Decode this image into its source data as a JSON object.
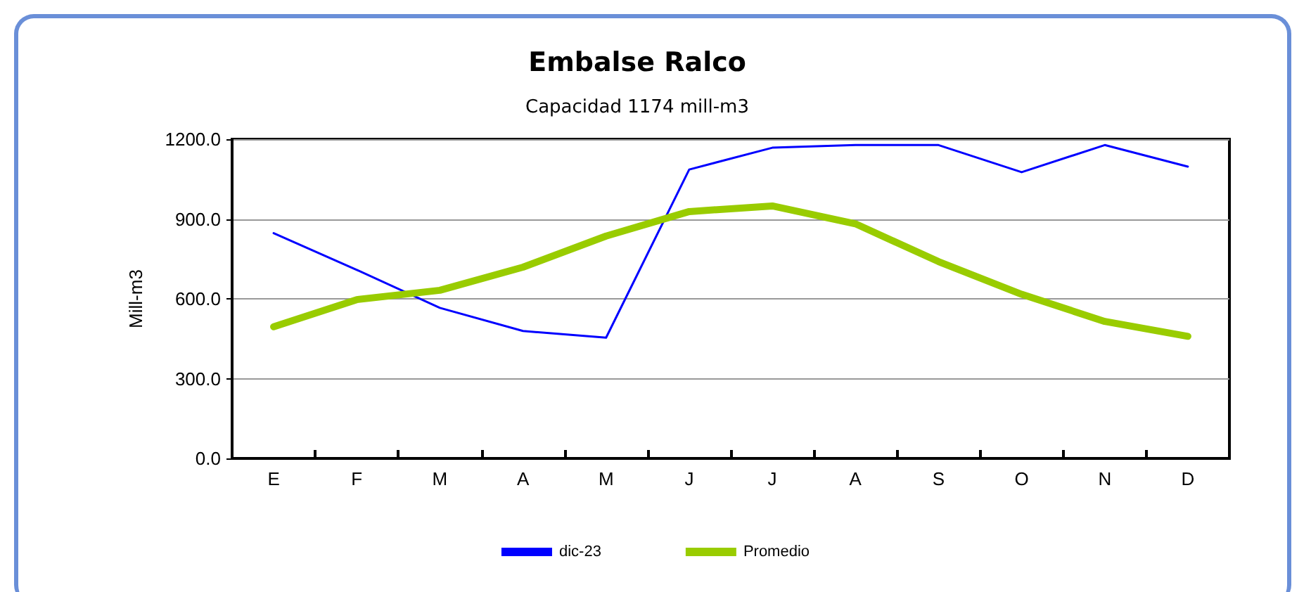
{
  "chart_data": {
    "type": "line",
    "title": "Embalse Ralco",
    "subtitle": "Capacidad 1174 mill-m3",
    "ylabel": "Mill-m3",
    "categories": [
      "E",
      "F",
      "M",
      "A",
      "M",
      "J",
      "J",
      "A",
      "S",
      "O",
      "N",
      "D"
    ],
    "series": [
      {
        "name": "dic-23",
        "color": "#0000ff",
        "values": [
          847,
          709,
          566,
          479,
          454,
          1086,
          1168,
          1178,
          1178,
          1076,
          1178,
          1097
        ]
      },
      {
        "name": "Promedio",
        "color": "#99cc00",
        "values": [
          495,
          597,
          632,
          719,
          836,
          928,
          949,
          882,
          740,
          617,
          515,
          459
        ]
      }
    ],
    "ylim": [
      0,
      1200
    ],
    "yticks": [
      {
        "value": 0,
        "label": "0.0"
      },
      {
        "value": 300,
        "label": "300.0"
      },
      {
        "value": 600,
        "label": "600.0"
      },
      {
        "value": 900,
        "label": "900.0"
      },
      {
        "value": 1200,
        "label": "1200.0"
      }
    ],
    "grid": "y",
    "legend": "bottom",
    "marker": "none",
    "line_style": "solid"
  }
}
